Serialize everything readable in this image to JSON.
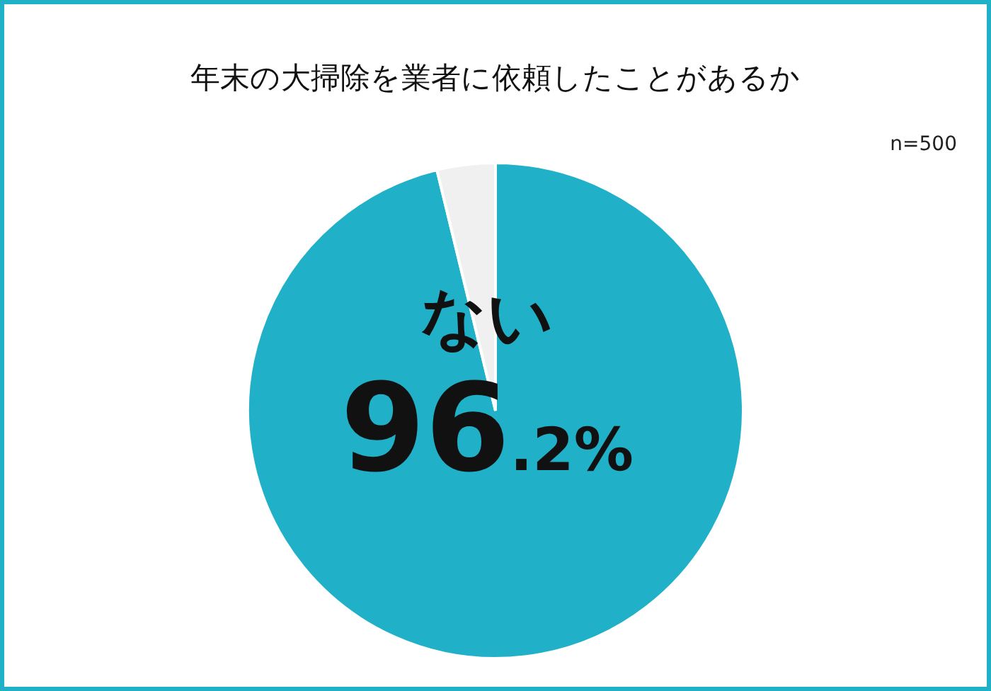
{
  "chart_data": {
    "type": "pie",
    "title": "年末の大掃除を業者に依頼したことがあるか",
    "categories": [
      "ない",
      null
    ],
    "values": [
      96.2,
      3.8
    ],
    "colors": [
      "#20b0c8",
      "#f0f0f0"
    ],
    "value_labels": [
      "96.2%",
      null
    ],
    "annotations": [
      "n=500"
    ]
  }
}
